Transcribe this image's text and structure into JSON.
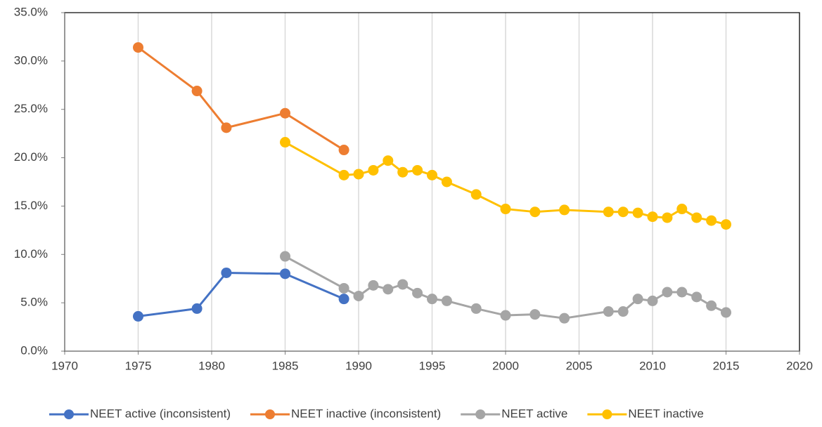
{
  "chart_data": {
    "type": "line",
    "xlim": [
      1970,
      2020
    ],
    "xticks": [
      1970,
      1975,
      1980,
      1985,
      1990,
      1995,
      2000,
      2005,
      2010,
      2015,
      2020
    ],
    "ylim": [
      0,
      35
    ],
    "yticks": [
      {
        "value": 0,
        "label": "0.0%"
      },
      {
        "value": 5,
        "label": "5.0%"
      },
      {
        "value": 10,
        "label": "10.0%"
      },
      {
        "value": 15,
        "label": "15.0%"
      },
      {
        "value": 20,
        "label": "20.0%"
      },
      {
        "value": 25,
        "label": "25.0%"
      },
      {
        "value": 30,
        "label": "30.0%"
      },
      {
        "value": 35,
        "label": "35.0%"
      }
    ],
    "grid": true,
    "legend": "bottom",
    "series": [
      {
        "name": "NEET active (inconsistent)",
        "color": "#4472c4",
        "x": [
          1975,
          1979,
          1981,
          1985,
          1989
        ],
        "values": [
          3.6,
          4.4,
          8.1,
          8.0,
          5.4
        ]
      },
      {
        "name": "NEET inactive (inconsistent)",
        "color": "#ed7d31",
        "x": [
          1975,
          1979,
          1981,
          1985,
          1989
        ],
        "values": [
          31.4,
          26.9,
          23.1,
          24.6,
          20.8
        ]
      },
      {
        "name": "NEET active",
        "color": "#a5a5a5",
        "x": [
          1985,
          1989,
          1990,
          1991,
          1992,
          1993,
          1994,
          1995,
          1996,
          1998,
          2000,
          2002,
          2004,
          2007,
          2008,
          2009,
          2010,
          2011,
          2012,
          2013,
          2014,
          2015
        ],
        "values": [
          9.8,
          6.5,
          5.7,
          6.8,
          6.4,
          6.9,
          6.0,
          5.4,
          5.2,
          4.4,
          3.7,
          3.8,
          3.4,
          4.1,
          4.1,
          5.4,
          5.2,
          6.1,
          6.1,
          5.6,
          4.7,
          4.0
        ]
      },
      {
        "name": "NEET inactive",
        "color": "#ffc000",
        "x": [
          1985,
          1989,
          1990,
          1991,
          1992,
          1993,
          1994,
          1995,
          1996,
          1998,
          2000,
          2002,
          2004,
          2007,
          2008,
          2009,
          2010,
          2011,
          2012,
          2013,
          2014,
          2015
        ],
        "values": [
          21.6,
          18.2,
          18.3,
          18.7,
          19.7,
          18.5,
          18.7,
          18.2,
          17.5,
          16.2,
          14.7,
          14.4,
          14.6,
          14.4,
          14.4,
          14.3,
          13.9,
          13.8,
          14.7,
          13.8,
          13.5,
          13.1
        ]
      }
    ]
  }
}
